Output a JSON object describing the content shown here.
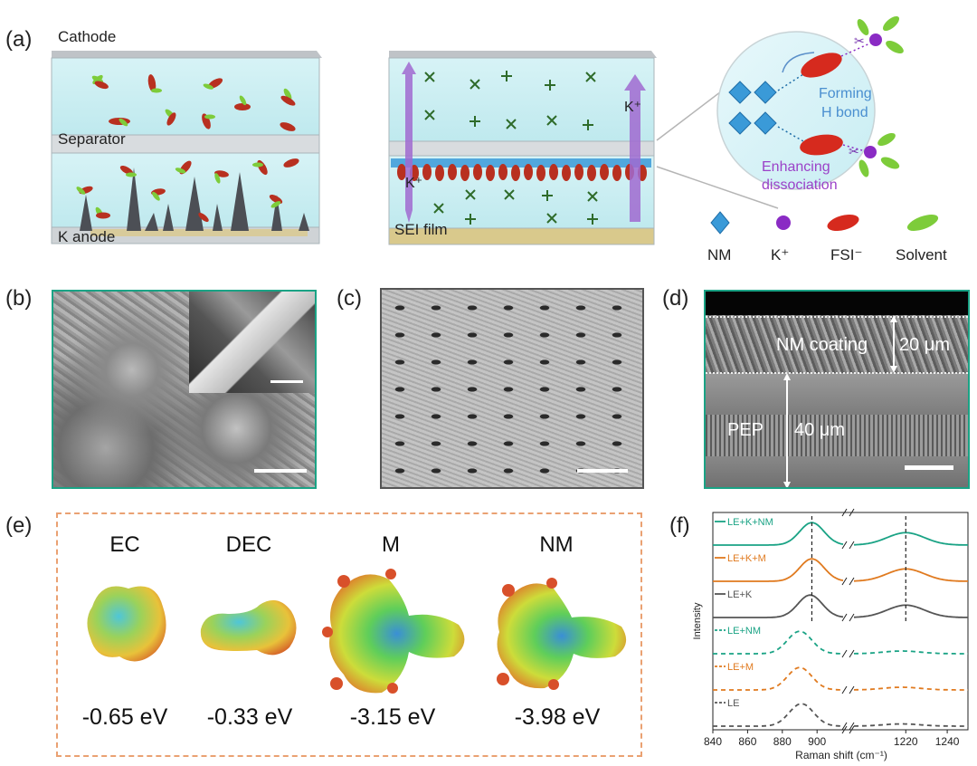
{
  "panels": {
    "a": "(a)",
    "b": "(b)",
    "c": "(c)",
    "d": "(d)",
    "e": "(e)",
    "f": "(f)"
  },
  "panel_a": {
    "cathode": "Cathode",
    "separator": "Separator",
    "anode": "K anode",
    "sei": "SEI film",
    "k_up": "K⁺",
    "k_down": "K⁺",
    "forming": "Forming",
    "hbond": "H bond",
    "enhancing": "Enhancing",
    "dissociation": "dissociation",
    "legend": {
      "nm": "NM",
      "k": "K⁺",
      "fsi": "FSI⁻",
      "solvent": "Solvent"
    },
    "colors": {
      "electrolyte": "#c9eef2",
      "nm": "#3a9ad8",
      "k": "#8a2bc4",
      "fsi": "#d62a1e",
      "solvent": "#7dcc3a",
      "arrow": "#a06ad0"
    }
  },
  "panel_d": {
    "coating": "NM coating",
    "coating_thk": "20 μm",
    "pep": "PEP",
    "pep_thk": "40 μm"
  },
  "panel_e": {
    "molecules": [
      {
        "name": "EC",
        "energy": "-0.65 eV"
      },
      {
        "name": "DEC",
        "energy": "-0.33 eV"
      },
      {
        "name": "M",
        "energy": "-3.15 eV"
      },
      {
        "name": "NM",
        "energy": "-3.98 eV"
      }
    ]
  },
  "chart_data": {
    "type": "line",
    "xlabel": "Raman shift (cm⁻¹)",
    "ylabel": "Intensity",
    "xticks": [
      "840",
      "860",
      "880",
      "900",
      "1220",
      "1240"
    ],
    "xrange_left": [
      840,
      915
    ],
    "xrange_right": [
      1195,
      1250
    ],
    "dashed_refs": [
      897,
      1220
    ],
    "series": [
      {
        "name": "LE+K+NM",
        "color": "#1aa385",
        "style": "solid",
        "peaks": [
          [
            897,
            1.0
          ],
          [
            1220,
            0.55
          ]
        ]
      },
      {
        "name": "LE+K+M",
        "color": "#e07a1f",
        "style": "solid",
        "peaks": [
          [
            897,
            1.0
          ],
          [
            1220,
            0.55
          ]
        ]
      },
      {
        "name": "LE+K",
        "color": "#555555",
        "style": "solid",
        "peaks": [
          [
            896,
            1.0
          ],
          [
            1220,
            0.55
          ]
        ]
      },
      {
        "name": "LE+NM",
        "color": "#1aa385",
        "style": "dashed",
        "peaks": [
          [
            890,
            1.0
          ],
          [
            1218,
            0.12
          ]
        ]
      },
      {
        "name": "LE+M",
        "color": "#e07a1f",
        "style": "dashed",
        "peaks": [
          [
            890,
            1.0
          ],
          [
            1218,
            0.12
          ]
        ]
      },
      {
        "name": "LE",
        "color": "#555555",
        "style": "dashed",
        "peaks": [
          [
            891,
            1.0
          ],
          [
            1218,
            0.1
          ]
        ]
      }
    ]
  }
}
